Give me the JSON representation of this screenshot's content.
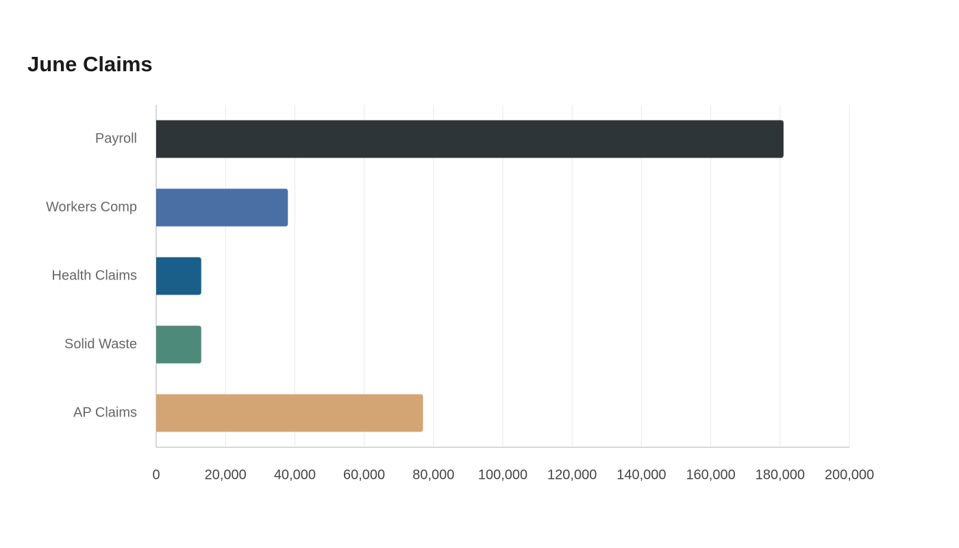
{
  "chart_data": {
    "type": "hbar",
    "title": "June Claims",
    "categories": [
      "Payroll",
      "Workers Comp",
      "Health Claims",
      "Solid Waste",
      "AP Claims"
    ],
    "values": [
      181000,
      38000,
      13000,
      13000,
      77000
    ],
    "colors": [
      "#2e3538",
      "#4a6fa5",
      "#1a5f8a",
      "#4e8a7a",
      "#d4a574"
    ],
    "xlim": [
      0,
      200000
    ],
    "xticks": [
      0,
      {
        "value": 20000,
        "label": "20,000"
      },
      {
        "value": 40000,
        "label": "40,000"
      },
      {
        "value": 60000,
        "label": "60,000"
      },
      {
        "value": 80000,
        "label": "80,000"
      },
      {
        "value": 100000,
        "label": "100,000"
      },
      {
        "value": 120000,
        "label": "120,000"
      },
      {
        "value": 140000,
        "label": "140,000"
      },
      {
        "value": 160000,
        "label": "160,000"
      },
      {
        "value": 180000,
        "label": "180,000"
      },
      {
        "value": 200000,
        "label": "200,000"
      }
    ],
    "grid": true
  }
}
